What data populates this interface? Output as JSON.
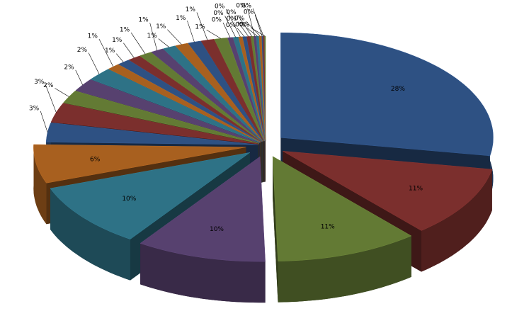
{
  "chart_data": {
    "type": "pie",
    "values": [
      28,
      11,
      11,
      10,
      10,
      6,
      3,
      3,
      2,
      2,
      2,
      1,
      1,
      1,
      1,
      1,
      1,
      1,
      1,
      1,
      1,
      0.4,
      0.4,
      0.3,
      0.3,
      0.3,
      0.2,
      0.2,
      0.2,
      0.2,
      0.1,
      0.1,
      0.1
    ],
    "value_labels": [
      "28%",
      "11%",
      "11%",
      "10%",
      "10%",
      "6%",
      "3%",
      "3%",
      "2%",
      "2%",
      "2%",
      "1%",
      "1%",
      "1%",
      "1%",
      "1%",
      "1%",
      "1%",
      "1%",
      "1%",
      "1%",
      "0%",
      "0%",
      "0%",
      "0%",
      "0%",
      "0%",
      "0%",
      "0%",
      "0%",
      "0%",
      "0%",
      "0%"
    ],
    "colors": [
      "#2e5183",
      "#7b2f2d",
      "#637a34",
      "#57416f",
      "#2e7286",
      "#a8601f",
      "#2e5183",
      "#7b2f2d",
      "#637a34",
      "#57416f",
      "#2e7286",
      "#a8601f",
      "#2e5183",
      "#7b2f2d",
      "#637a34",
      "#57416f",
      "#2e7286",
      "#a8601f",
      "#2e5183",
      "#7b2f2d",
      "#637a34",
      "#57416f",
      "#2e7286",
      "#a8601f",
      "#2e5183",
      "#7b2f2d",
      "#637a34",
      "#57416f",
      "#2e7286",
      "#a8601f",
      "#2e5183",
      "#7b2f2d",
      "#637a34"
    ]
  }
}
